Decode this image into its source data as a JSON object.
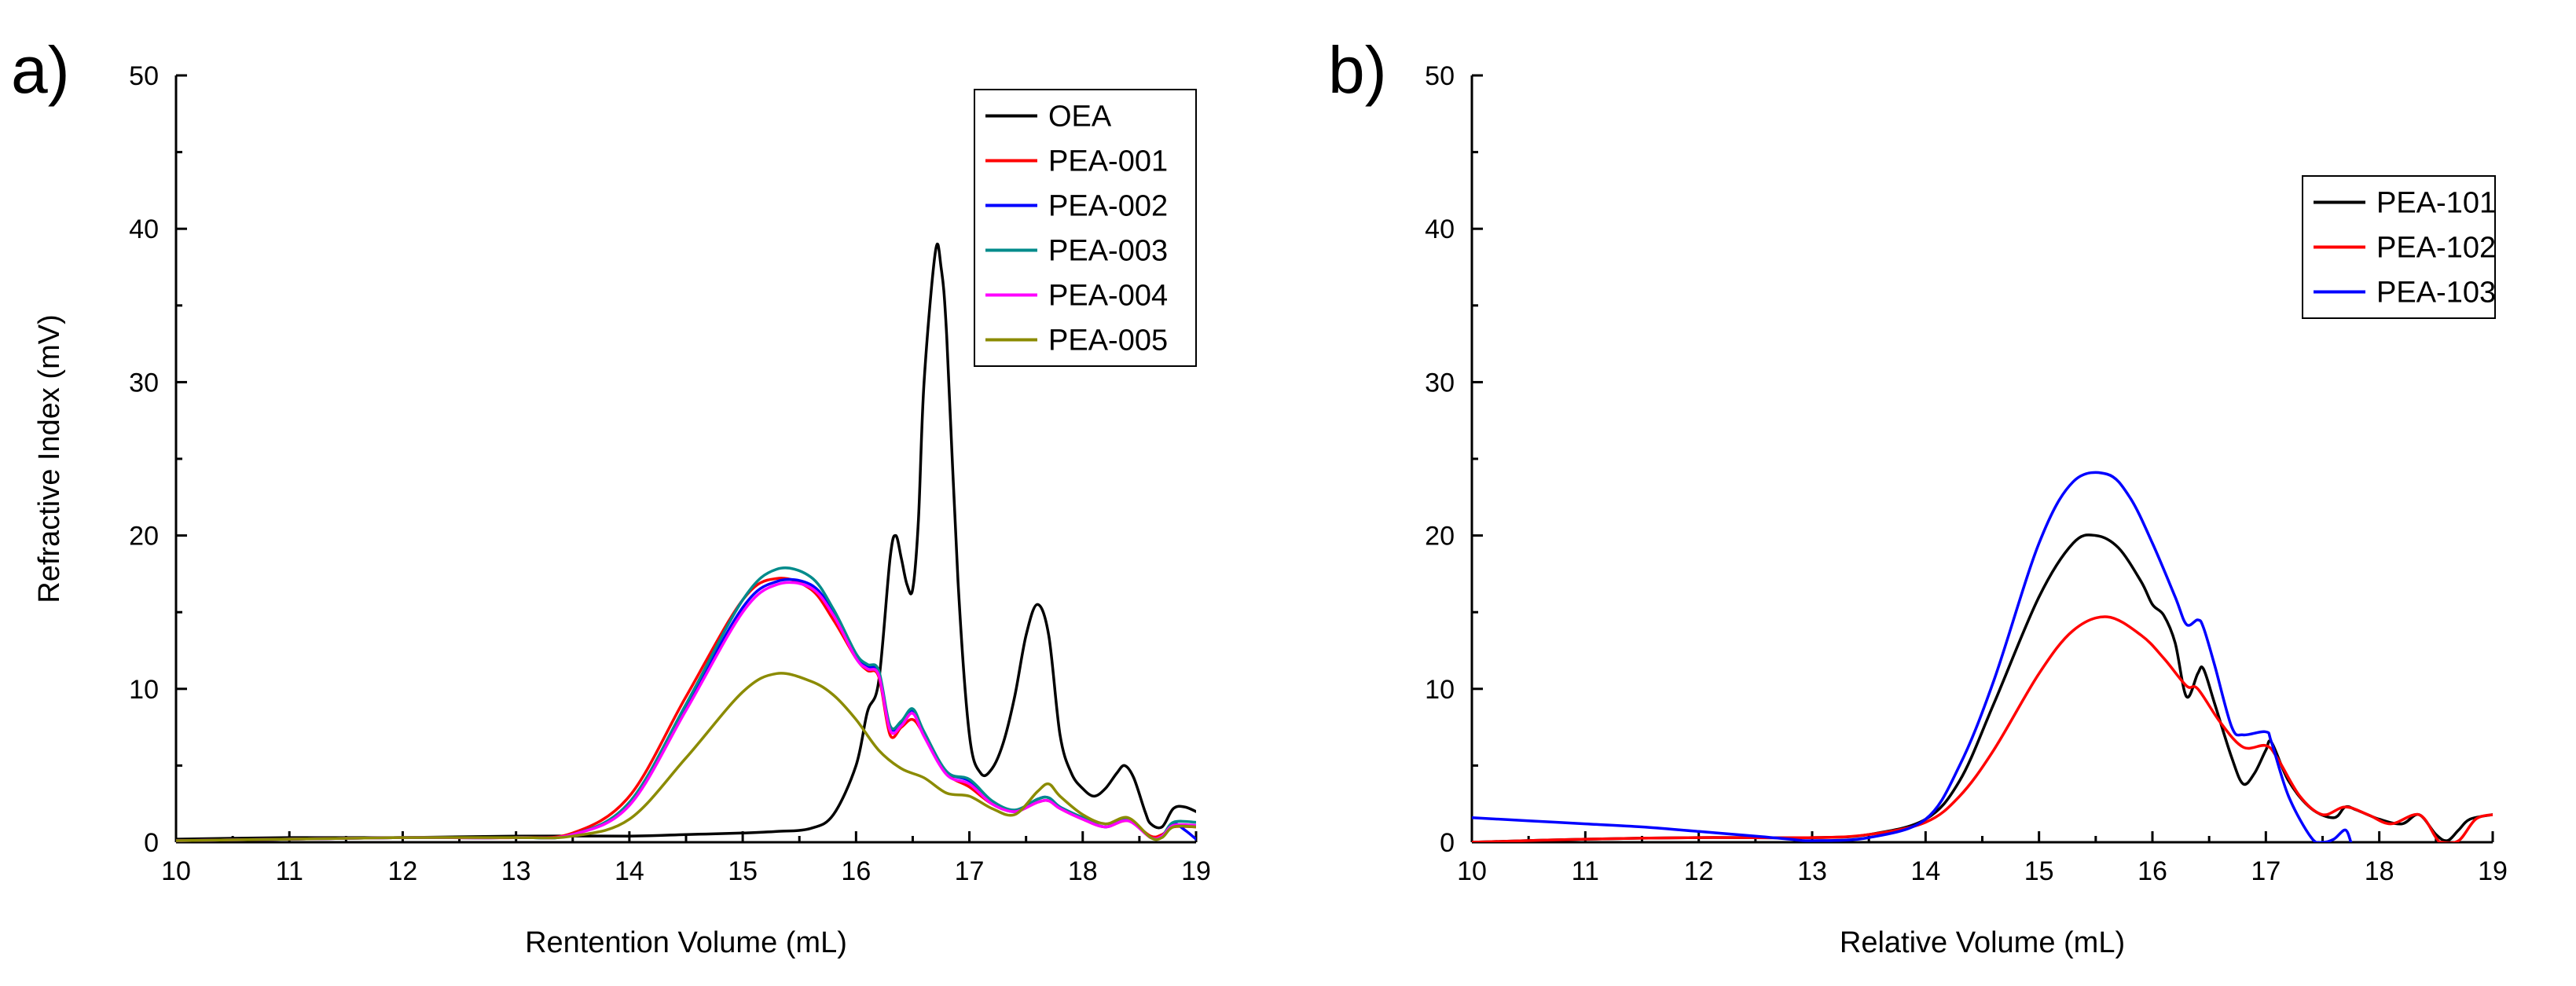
{
  "chart_data": [
    {
      "type": "line",
      "panel_label": "a)",
      "title": "",
      "xlabel": "Rentention Volume (mL)",
      "ylabel": "Refractive Index (mV)",
      "xlim": [
        10,
        19
      ],
      "ylim": [
        0,
        50
      ],
      "xticks": [
        10,
        11,
        12,
        13,
        14,
        15,
        16,
        17,
        18,
        19
      ],
      "yticks": [
        0,
        10,
        20,
        30,
        40,
        50
      ],
      "legend_position": "top-right",
      "series": [
        {
          "name": "OEA",
          "color": "#000000",
          "x": [
            10,
            11,
            12,
            13,
            14,
            14.5,
            15,
            15.3,
            15.6,
            15.8,
            16.0,
            16.1,
            16.2,
            16.3,
            16.35,
            16.4,
            16.45,
            16.5,
            16.55,
            16.6,
            16.7,
            16.75,
            16.8,
            16.9,
            17.0,
            17.1,
            17.2,
            17.3,
            17.4,
            17.5,
            17.6,
            17.7,
            17.8,
            17.9,
            18.0,
            18.1,
            18.2,
            18.3,
            18.37,
            18.45,
            18.55,
            18.6,
            18.7,
            18.8,
            18.9,
            19.0
          ],
          "y": [
            0.2,
            0.3,
            0.3,
            0.4,
            0.4,
            0.5,
            0.6,
            0.7,
            0.9,
            1.8,
            5.0,
            8.5,
            10.5,
            18.5,
            20.0,
            18.5,
            16.8,
            16.5,
            21.0,
            30.0,
            38.5,
            37.5,
            33.0,
            17.0,
            7.0,
            4.5,
            4.8,
            6.5,
            9.5,
            13.5,
            15.5,
            13.5,
            7.0,
            4.5,
            3.5,
            3.0,
            3.5,
            4.5,
            5.0,
            4.2,
            2.0,
            1.2,
            1.0,
            2.2,
            2.3,
            2.0
          ]
        },
        {
          "name": "PEA-001",
          "color": "#ff0000",
          "x": [
            10,
            11,
            12,
            13,
            13.5,
            14,
            14.5,
            15,
            15.3,
            15.6,
            15.8,
            16.0,
            16.1,
            16.2,
            16.3,
            16.4,
            16.5,
            16.6,
            16.8,
            17.0,
            17.2,
            17.4,
            17.6,
            17.7,
            17.8,
            18.0,
            18.2,
            18.4,
            18.6,
            18.7,
            18.8,
            19.0
          ],
          "y": [
            0.1,
            0.2,
            0.3,
            0.3,
            0.6,
            3.0,
            9.5,
            15.8,
            17.2,
            16.5,
            14.5,
            12.0,
            11.2,
            10.8,
            7.0,
            7.5,
            8.0,
            7.0,
            4.5,
            3.6,
            2.5,
            2.0,
            2.6,
            2.7,
            2.2,
            1.5,
            1.0,
            1.4,
            0.4,
            0.5,
            1.0,
            1.0
          ]
        },
        {
          "name": "PEA-002",
          "color": "#0000ff",
          "x": [
            10,
            11,
            12,
            13,
            13.5,
            14,
            14.5,
            15,
            15.3,
            15.6,
            15.8,
            16.0,
            16.1,
            16.2,
            16.3,
            16.4,
            16.5,
            16.6,
            16.8,
            17.0,
            17.2,
            17.4,
            17.6,
            17.7,
            17.8,
            18.0,
            18.2,
            18.4,
            18.6,
            18.7,
            18.8,
            18.9,
            19.0
          ],
          "y": [
            0.1,
            0.2,
            0.3,
            0.3,
            0.5,
            2.5,
            8.8,
            15.3,
            17.0,
            16.8,
            15.0,
            12.2,
            11.5,
            11.0,
            7.5,
            7.8,
            8.6,
            7.0,
            4.6,
            4.0,
            2.6,
            2.0,
            2.8,
            2.9,
            2.3,
            1.6,
            1.0,
            1.5,
            0.3,
            0.4,
            1.2,
            0.8,
            0.2
          ]
        },
        {
          "name": "PEA-003",
          "color": "#008b8b",
          "x": [
            10,
            11,
            12,
            13,
            13.5,
            14,
            14.5,
            15,
            15.3,
            15.6,
            15.8,
            16.0,
            16.1,
            16.2,
            16.3,
            16.4,
            16.5,
            16.6,
            16.8,
            17.0,
            17.2,
            17.4,
            17.6,
            17.7,
            17.8,
            18.0,
            18.2,
            18.4,
            18.6,
            18.7,
            18.8,
            19.0
          ],
          "y": [
            0.1,
            0.2,
            0.3,
            0.3,
            0.5,
            2.6,
            9.0,
            15.8,
            17.8,
            17.3,
            15.2,
            12.3,
            11.6,
            11.2,
            7.6,
            7.9,
            8.7,
            7.2,
            4.6,
            4.1,
            2.7,
            2.1,
            2.8,
            2.9,
            2.3,
            1.6,
            1.0,
            1.5,
            0.3,
            0.4,
            1.3,
            1.3
          ]
        },
        {
          "name": "PEA-004",
          "color": "#ff00ff",
          "x": [
            10,
            11,
            12,
            13,
            13.5,
            14,
            14.5,
            15,
            15.3,
            15.6,
            15.8,
            16.0,
            16.1,
            16.2,
            16.3,
            16.4,
            16.5,
            16.6,
            16.8,
            17.0,
            17.2,
            17.4,
            17.6,
            17.7,
            17.8,
            18.0,
            18.2,
            18.4,
            18.6,
            18.7,
            18.8,
            19.0
          ],
          "y": [
            0.1,
            0.2,
            0.3,
            0.3,
            0.5,
            2.4,
            8.6,
            15.0,
            16.8,
            16.6,
            14.8,
            12.0,
            11.3,
            10.9,
            7.3,
            7.6,
            8.4,
            6.9,
            4.4,
            3.8,
            2.5,
            2.0,
            2.6,
            2.7,
            2.2,
            1.5,
            1.0,
            1.4,
            0.3,
            0.4,
            1.1,
            1.1
          ]
        },
        {
          "name": "PEA-005",
          "color": "#8b8b00",
          "x": [
            10,
            11,
            12,
            13,
            13.5,
            14,
            14.5,
            15,
            15.3,
            15.6,
            15.8,
            16.0,
            16.2,
            16.4,
            16.6,
            16.8,
            17.0,
            17.2,
            17.4,
            17.6,
            17.7,
            17.8,
            18.0,
            18.2,
            18.4,
            18.6,
            18.7,
            18.8,
            19.0
          ],
          "y": [
            0.1,
            0.2,
            0.3,
            0.3,
            0.4,
            1.5,
            5.5,
            9.8,
            11.0,
            10.5,
            9.6,
            8.0,
            6.0,
            4.8,
            4.2,
            3.2,
            3.0,
            2.2,
            1.8,
            3.3,
            3.8,
            3.0,
            1.8,
            1.2,
            1.6,
            0.3,
            0.3,
            1.0,
            1.0
          ]
        }
      ]
    },
    {
      "type": "line",
      "panel_label": "b)",
      "title": "",
      "xlabel": "Relative Volume (mL)",
      "ylabel": "",
      "xlim": [
        10,
        19
      ],
      "ylim": [
        0,
        50
      ],
      "xticks": [
        10,
        11,
        12,
        13,
        14,
        15,
        16,
        17,
        18,
        19
      ],
      "yticks": [
        0,
        10,
        20,
        30,
        40,
        50
      ],
      "legend_position": "top-right",
      "series": [
        {
          "name": "PEA-101",
          "color": "#000000",
          "x": [
            10,
            11,
            12,
            13,
            13.5,
            14,
            14.3,
            14.6,
            15.0,
            15.3,
            15.5,
            15.7,
            15.9,
            16.0,
            16.1,
            16.2,
            16.3,
            16.4,
            16.45,
            16.55,
            16.7,
            16.8,
            16.9,
            17.0,
            17.05,
            17.2,
            17.4,
            17.6,
            17.7,
            17.8,
            18.0,
            18.2,
            18.35,
            18.5,
            18.6,
            18.7,
            18.8,
            19.0
          ],
          "y": [
            0.0,
            0.2,
            0.3,
            0.3,
            0.5,
            1.5,
            4.0,
            9.0,
            16.0,
            19.5,
            20.0,
            19.2,
            17.0,
            15.5,
            14.8,
            13.0,
            9.5,
            11.0,
            11.3,
            9.0,
            5.5,
            3.8,
            4.5,
            6.0,
            6.5,
            4.0,
            2.2,
            1.6,
            2.3,
            2.1,
            1.5,
            1.2,
            1.8,
            0.5,
            0.1,
            0.8,
            1.5,
            1.8
          ]
        },
        {
          "name": "PEA-102",
          "color": "#ff0000",
          "x": [
            10,
            11,
            12,
            13,
            13.5,
            14,
            14.3,
            14.6,
            15.0,
            15.3,
            15.6,
            15.9,
            16.1,
            16.3,
            16.4,
            16.6,
            16.8,
            17.0,
            17.1,
            17.3,
            17.5,
            17.7,
            17.9,
            18.1,
            18.35,
            18.5,
            18.55,
            18.7,
            18.85,
            19.0
          ],
          "y": [
            0.0,
            0.2,
            0.3,
            0.3,
            0.5,
            1.3,
            3.0,
            6.0,
            11.0,
            13.8,
            14.7,
            13.5,
            12.0,
            10.2,
            10.0,
            7.8,
            6.2,
            6.3,
            5.5,
            3.0,
            1.8,
            2.3,
            1.8,
            1.2,
            1.8,
            0.3,
            0.0,
            0.1,
            1.5,
            1.8
          ]
        },
        {
          "name": "PEA-103",
          "color": "#0000ff",
          "x": [
            10,
            10.5,
            11,
            11.5,
            12,
            12.5,
            12.8,
            13.0,
            13.5,
            14,
            14.3,
            14.6,
            15.0,
            15.3,
            15.6,
            15.8,
            16.0,
            16.2,
            16.3,
            16.4,
            16.45,
            16.55,
            16.7,
            16.8,
            17.0,
            17.05,
            17.2,
            17.4,
            17.5,
            17.6,
            17.7,
            17.75
          ],
          "y": [
            1.6,
            1.4,
            1.2,
            1.0,
            0.7,
            0.4,
            0.2,
            0.1,
            0.3,
            1.5,
            5.0,
            10.5,
            19.5,
            23.5,
            24.0,
            22.5,
            19.5,
            16.0,
            14.2,
            14.5,
            14.0,
            11.5,
            7.5,
            7.0,
            7.2,
            6.5,
            3.0,
            0.3,
            0.0,
            0.2,
            0.8,
            0.0
          ]
        }
      ]
    }
  ]
}
